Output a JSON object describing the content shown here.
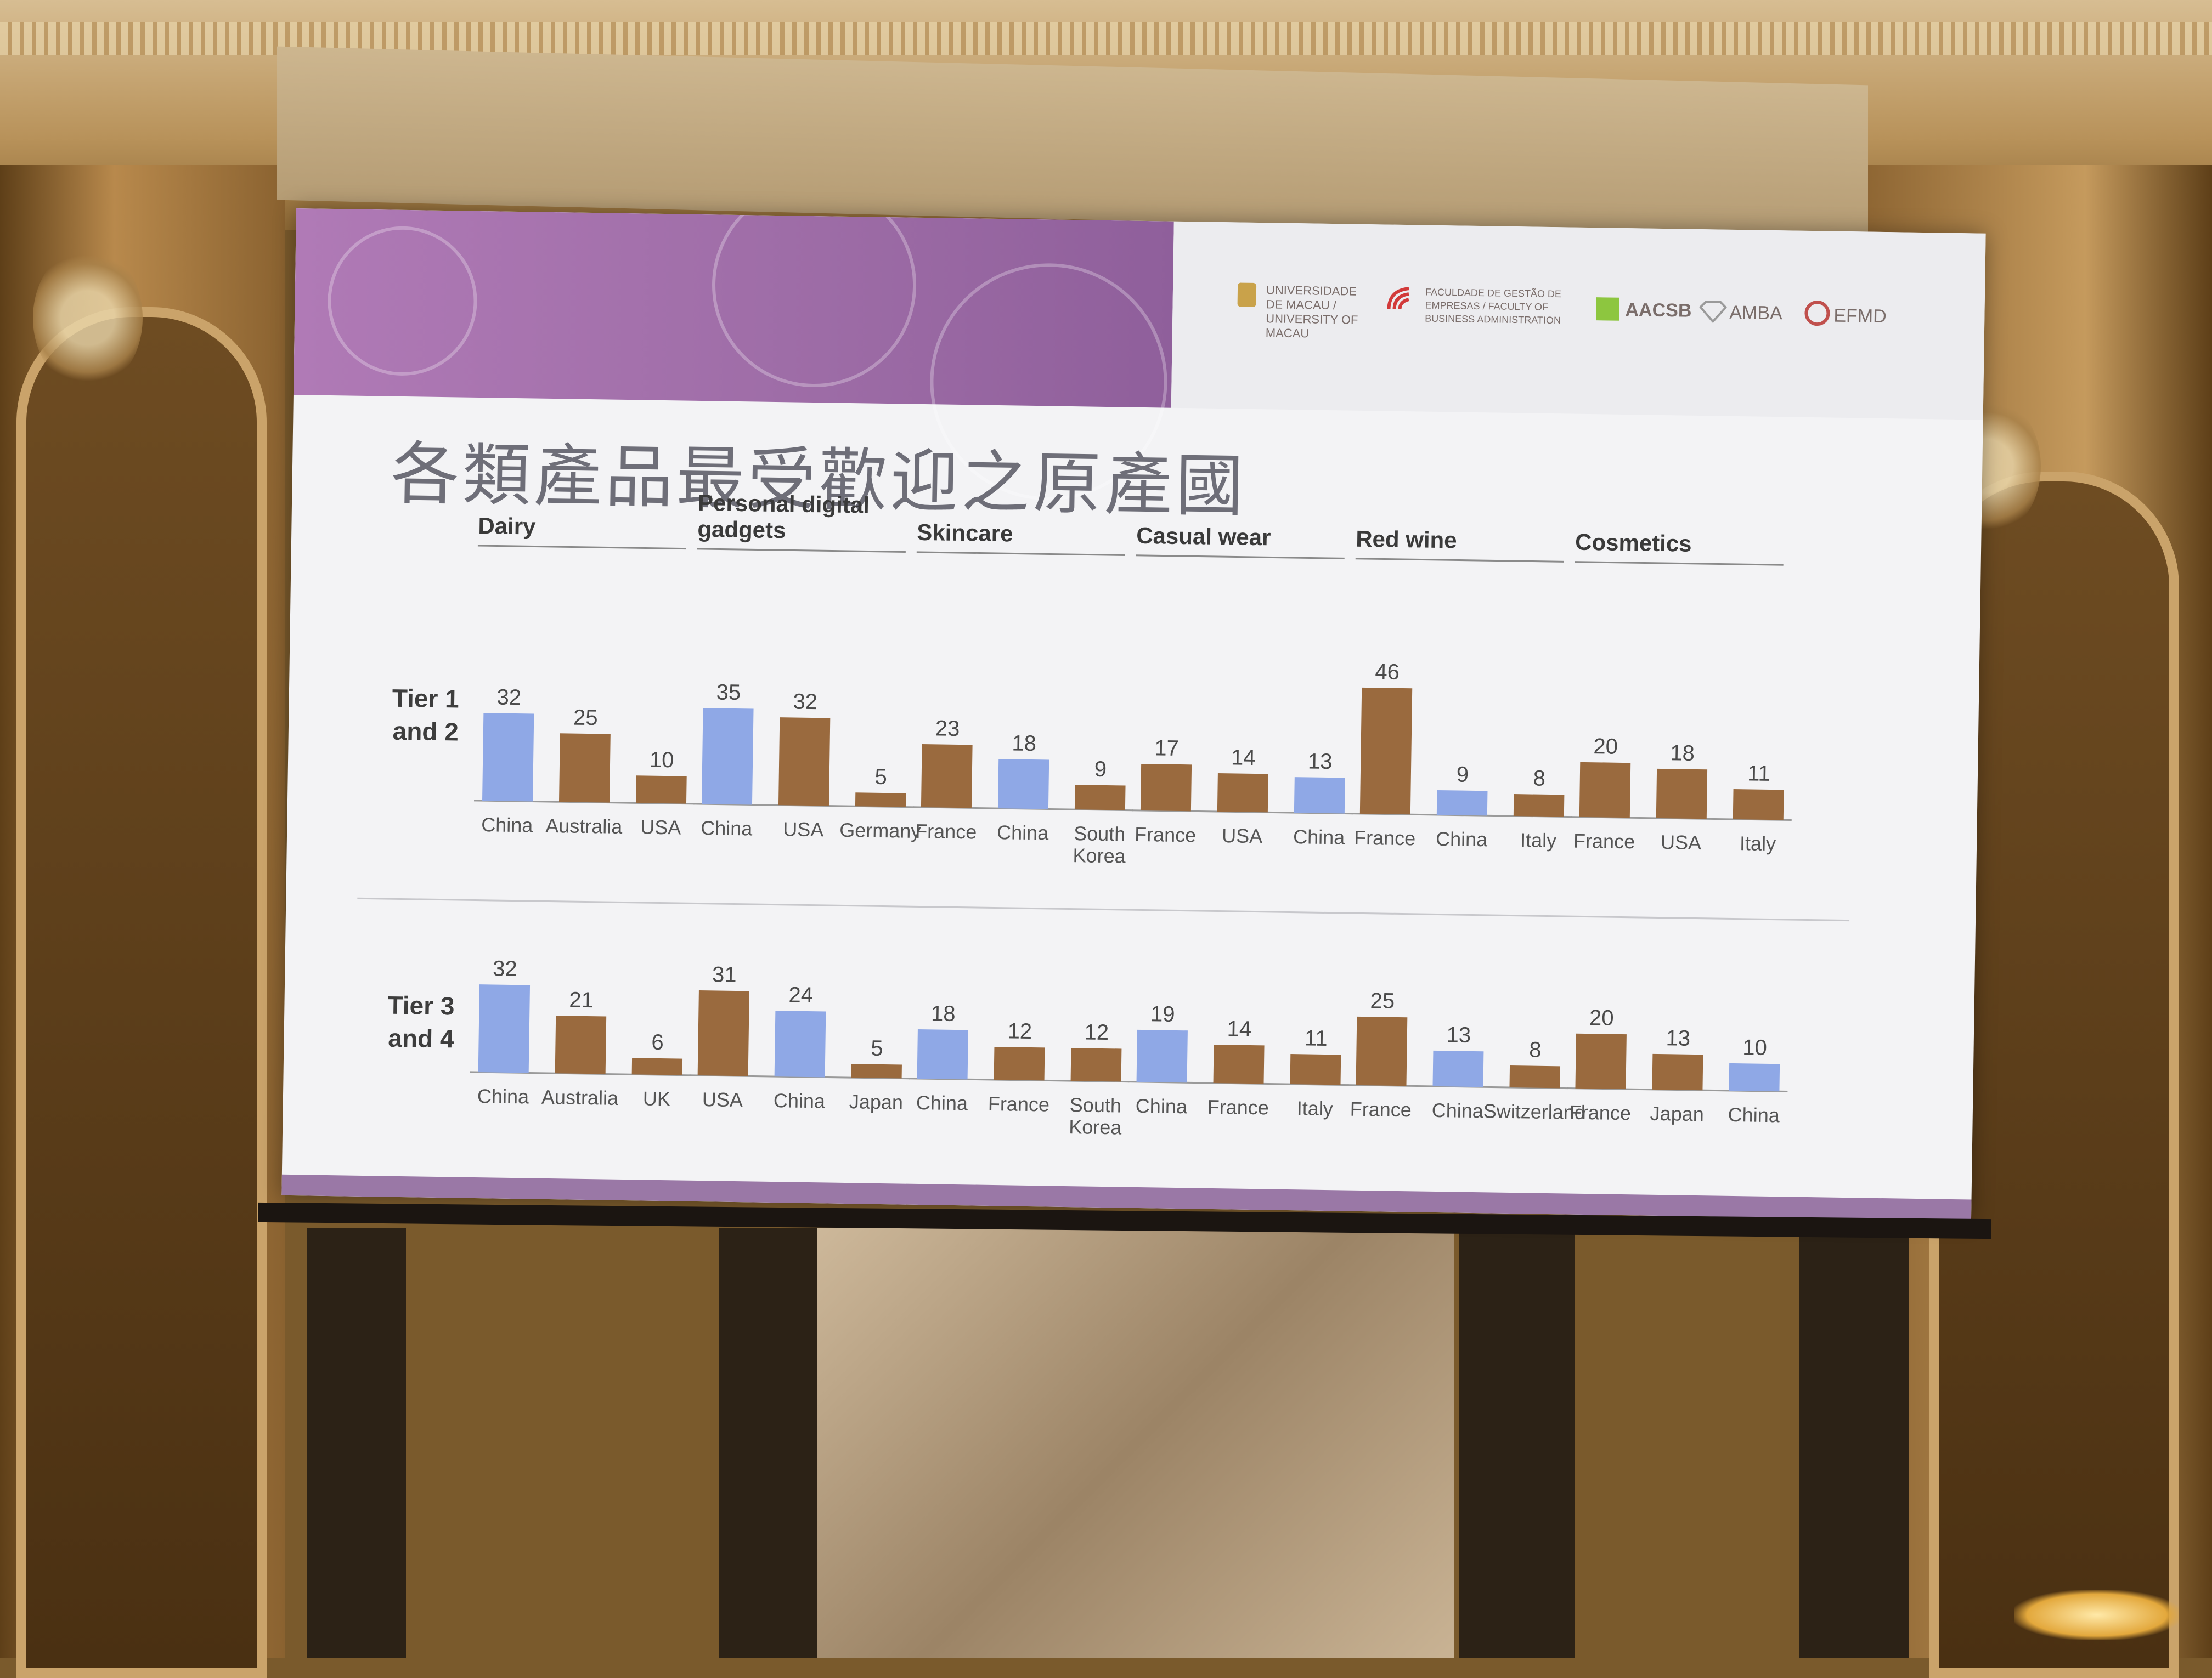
{
  "slide": {
    "title": "各類產品最受歡迎之原產國",
    "logos": [
      "UNIVERSIDADE DE MACAU / UNIVERSITY OF MACAU",
      "FACULDADE DE GESTÃO DE EMPRESAS / FACULTY OF BUSINESS ADMINISTRATION",
      "AACSB",
      "AMBA",
      "EFMD"
    ],
    "tier_labels": [
      "Tier 1\nand 2",
      "Tier 3\nand 4"
    ]
  },
  "colors": {
    "china": "#8fa8e6",
    "other": "#9a6a3e",
    "banner": "#a773ad"
  },
  "chart_data": [
    {
      "type": "bar",
      "title": "Dairy",
      "panels": [
        {
          "tier": "Tier 1 and 2",
          "categories": [
            "China",
            "Australia",
            "USA"
          ],
          "values": [
            32,
            25,
            10
          ]
        },
        {
          "tier": "Tier 3 and 4",
          "categories": [
            "China",
            "Australia",
            "UK"
          ],
          "values": [
            32,
            21,
            6
          ]
        }
      ]
    },
    {
      "type": "bar",
      "title": "Personal digital gadgets",
      "panels": [
        {
          "tier": "Tier 1 and 2",
          "categories": [
            "China",
            "USA",
            "Germany"
          ],
          "values": [
            35,
            32,
            5
          ]
        },
        {
          "tier": "Tier 3 and 4",
          "categories": [
            "USA",
            "China",
            "Japan"
          ],
          "values": [
            31,
            24,
            5
          ]
        }
      ]
    },
    {
      "type": "bar",
      "title": "Skincare",
      "panels": [
        {
          "tier": "Tier 1 and 2",
          "categories": [
            "France",
            "China",
            "South Korea"
          ],
          "values": [
            23,
            18,
            9
          ]
        },
        {
          "tier": "Tier 3 and 4",
          "categories": [
            "China",
            "France",
            "South Korea"
          ],
          "values": [
            18,
            12,
            12
          ]
        }
      ]
    },
    {
      "type": "bar",
      "title": "Casual wear",
      "panels": [
        {
          "tier": "Tier 1 and 2",
          "categories": [
            "France",
            "USA",
            "China"
          ],
          "values": [
            17,
            14,
            13
          ]
        },
        {
          "tier": "Tier 3 and 4",
          "categories": [
            "China",
            "France",
            "Italy"
          ],
          "values": [
            19,
            14,
            11
          ]
        }
      ]
    },
    {
      "type": "bar",
      "title": "Red wine",
      "panels": [
        {
          "tier": "Tier 1 and 2",
          "categories": [
            "France",
            "China",
            "Italy"
          ],
          "values": [
            46,
            9,
            8
          ]
        },
        {
          "tier": "Tier 3 and 4",
          "categories": [
            "France",
            "China",
            "Switzerland"
          ],
          "values": [
            25,
            13,
            8
          ]
        }
      ]
    },
    {
      "type": "bar",
      "title": "Cosmetics",
      "panels": [
        {
          "tier": "Tier 1 and 2",
          "categories": [
            "France",
            "USA",
            "Italy"
          ],
          "values": [
            20,
            18,
            11
          ]
        },
        {
          "tier": "Tier 3 and 4",
          "categories": [
            "France",
            "Japan",
            "China"
          ],
          "values": [
            20,
            13,
            10
          ]
        }
      ]
    }
  ]
}
